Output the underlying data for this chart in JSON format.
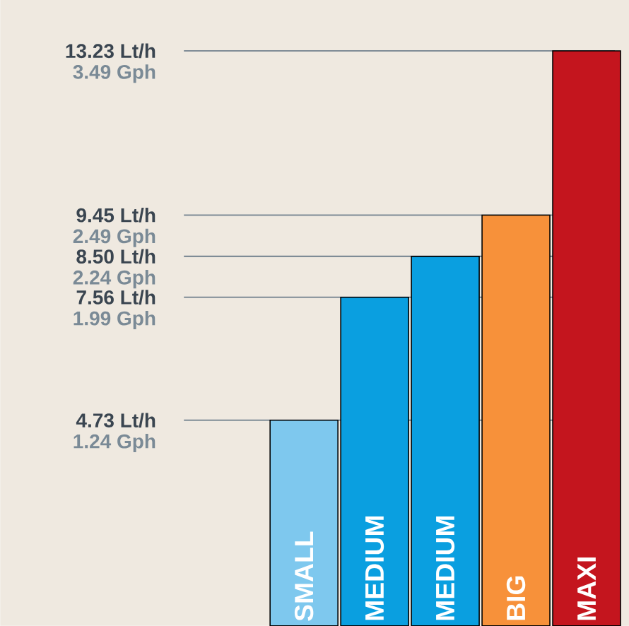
{
  "chart_data": {
    "type": "bar",
    "categories": [
      "SMALL",
      "MEDIUM",
      "MEDIUM",
      "BIG",
      "MAXI"
    ],
    "values": [
      4.73,
      7.56,
      8.5,
      9.45,
      13.23
    ],
    "colors": [
      "#7ec8ee",
      "#0a9fe0",
      "#0a9fe0",
      "#f7913a",
      "#c4151e"
    ],
    "ylim": [
      0,
      14.4
    ],
    "yticks": [
      {
        "value": 4.73,
        "label": "4.73 Lt/h"
      },
      {
        "value": 7.56,
        "label": "7.56 Lt/h"
      },
      {
        "value": 8.5,
        "label": "8.50 Lt/h"
      },
      {
        "value": 9.45,
        "label": "9.45 Lt/h"
      },
      {
        "value": 13.23,
        "label": "13.23 Lt/h"
      }
    ],
    "ref_lines": [
      {
        "axis": "y",
        "value": 4.73,
        "color": "#7f8c96"
      },
      {
        "axis": "y",
        "value": 7.56,
        "color": "#7f8c96"
      },
      {
        "axis": "y",
        "value": 8.5,
        "color": "#7f8c96"
      },
      {
        "axis": "y",
        "value": 9.45,
        "color": "#7f8c96"
      },
      {
        "axis": "y",
        "value": 13.23,
        "color": "#7f8c96"
      }
    ],
    "annotations": [
      "1.24 Gph",
      "1.99 Gph",
      "2.24 Gph",
      "2.49 Gph",
      "3.49 Gph"
    ]
  }
}
